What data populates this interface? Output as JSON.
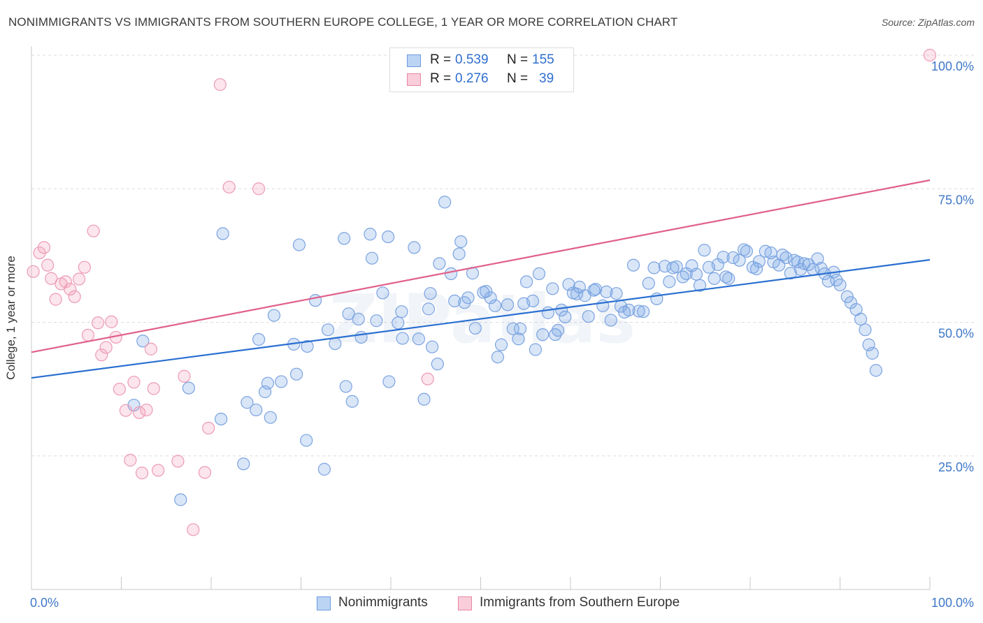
{
  "title": "NONIMMIGRANTS VS IMMIGRANTS FROM SOUTHERN EUROPE COLLEGE, 1 YEAR OR MORE CORRELATION CHART",
  "source": "Source: ZipAtlas.com",
  "watermark": "ZIPatlas",
  "legend": {
    "r_label": "R =",
    "n_label": "N =",
    "rows": [
      {
        "r": "0.539",
        "n": "155",
        "color": "#a9c8f2",
        "border": "#6d9be0"
      },
      {
        "r": "0.276",
        "n": "39",
        "color": "#f7bfcf",
        "border": "#e886a3"
      }
    ]
  },
  "bottom_legend": [
    {
      "label": "Nonimmigrants",
      "color": "#a9c8f2",
      "border": "#6d9be0"
    },
    {
      "label": "Immigrants from Southern Europe",
      "color": "#f7bfcf",
      "border": "#e886a3"
    }
  ],
  "colors": {
    "blue_fill": "rgba(120,165,230,0.28)",
    "blue_stroke": "#7ba3e0",
    "blue_line": "#2a6fd1",
    "pink_fill": "rgba(244,160,185,0.28)",
    "pink_stroke": "#ec9bb5",
    "pink_line": "#e0608a",
    "axis_text": "#3f78c9"
  },
  "chart_data": {
    "type": "scatter",
    "title": "NONIMMIGRANTS VS IMMIGRANTS FROM SOUTHERN EUROPE COLLEGE, 1 YEAR OR MORE CORRELATION CHART",
    "xlabel": "",
    "ylabel": "College, 1 year or more",
    "xlim": [
      0,
      100
    ],
    "ylim": [
      0,
      100
    ],
    "x_tick_labels": [
      "0.0%",
      "100.0%"
    ],
    "y_tick_labels": [
      "25.0%",
      "50.0%",
      "75.0%",
      "100.0%"
    ],
    "y_ticks": [
      25,
      50,
      75,
      100
    ],
    "grid": true,
    "legend_position": "top-center",
    "series": [
      {
        "name": "Nonimmigrants",
        "points": [
          [
            11.4,
            34.5
          ],
          [
            12.4,
            46.5
          ],
          [
            16.6,
            16.8
          ],
          [
            17.5,
            37.7
          ],
          [
            21.1,
            31.9
          ],
          [
            21.3,
            66.6
          ],
          [
            23.6,
            23.5
          ],
          [
            24.0,
            35.0
          ],
          [
            25.3,
            46.8
          ],
          [
            25.0,
            33.6
          ],
          [
            26.0,
            37.0
          ],
          [
            26.3,
            38.6
          ],
          [
            26.6,
            32.2
          ],
          [
            27.0,
            51.3
          ],
          [
            27.8,
            38.9
          ],
          [
            29.2,
            45.9
          ],
          [
            29.5,
            40.3
          ],
          [
            29.8,
            64.5
          ],
          [
            30.6,
            27.9
          ],
          [
            30.7,
            45.5
          ],
          [
            31.6,
            54.1
          ],
          [
            32.6,
            22.5
          ],
          [
            33.0,
            48.6
          ],
          [
            33.8,
            46.0
          ],
          [
            34.8,
            65.7
          ],
          [
            35.0,
            38.0
          ],
          [
            35.3,
            51.6
          ],
          [
            35.7,
            35.2
          ],
          [
            36.4,
            50.6
          ],
          [
            36.7,
            47.2
          ],
          [
            37.7,
            66.5
          ],
          [
            37.9,
            62.0
          ],
          [
            38.4,
            50.3
          ],
          [
            39.1,
            55.5
          ],
          [
            39.7,
            66.0
          ],
          [
            39.8,
            38.9
          ],
          [
            40.8,
            49.9
          ],
          [
            41.2,
            52.0
          ],
          [
            41.3,
            47.0
          ],
          [
            42.6,
            64.0
          ],
          [
            43.1,
            46.9
          ],
          [
            43.7,
            35.6
          ],
          [
            44.2,
            52.5
          ],
          [
            44.4,
            55.4
          ],
          [
            44.6,
            45.4
          ],
          [
            45.2,
            42.2
          ],
          [
            45.4,
            61.0
          ],
          [
            46.0,
            72.5
          ],
          [
            46.7,
            59.1
          ],
          [
            47.1,
            54.0
          ],
          [
            47.6,
            62.8
          ],
          [
            47.8,
            65.1
          ],
          [
            48.2,
            53.7
          ],
          [
            48.6,
            54.6
          ],
          [
            49.1,
            59.2
          ],
          [
            49.4,
            48.9
          ],
          [
            50.3,
            55.6
          ],
          [
            51.1,
            54.6
          ],
          [
            51.6,
            53.1
          ],
          [
            51.9,
            43.5
          ],
          [
            52.3,
            45.8
          ],
          [
            53.0,
            53.3
          ],
          [
            53.6,
            48.8
          ],
          [
            54.2,
            46.9
          ],
          [
            54.4,
            48.8
          ],
          [
            54.8,
            53.5
          ],
          [
            55.1,
            57.6
          ],
          [
            55.8,
            54.0
          ],
          [
            56.1,
            44.9
          ],
          [
            56.5,
            59.1
          ],
          [
            56.9,
            47.7
          ],
          [
            57.5,
            51.8
          ],
          [
            58.0,
            56.3
          ],
          [
            58.3,
            47.7
          ],
          [
            58.6,
            48.5
          ],
          [
            59.0,
            52.3
          ],
          [
            59.4,
            51.0
          ],
          [
            59.8,
            57.1
          ],
          [
            60.3,
            55.5
          ],
          [
            60.7,
            55.3
          ],
          [
            61.0,
            56.6
          ],
          [
            61.6,
            55.0
          ],
          [
            62.0,
            51.1
          ],
          [
            62.6,
            56.0
          ],
          [
            62.8,
            56.2
          ],
          [
            63.6,
            53.1
          ],
          [
            64.0,
            55.7
          ],
          [
            64.5,
            50.4
          ],
          [
            65.1,
            55.4
          ],
          [
            65.6,
            53.0
          ],
          [
            66.0,
            51.9
          ],
          [
            66.5,
            52.3
          ],
          [
            67.0,
            60.7
          ],
          [
            67.6,
            52.1
          ],
          [
            68.1,
            52.0
          ],
          [
            68.7,
            57.3
          ],
          [
            69.3,
            60.2
          ],
          [
            69.6,
            54.4
          ],
          [
            70.5,
            60.5
          ],
          [
            71.0,
            57.6
          ],
          [
            71.4,
            60.2
          ],
          [
            71.8,
            60.4
          ],
          [
            72.5,
            58.5
          ],
          [
            72.9,
            59.1
          ],
          [
            73.5,
            60.6
          ],
          [
            74.0,
            59.0
          ],
          [
            74.4,
            56.9
          ],
          [
            74.9,
            63.5
          ],
          [
            75.4,
            60.3
          ],
          [
            76.0,
            58.2
          ],
          [
            76.4,
            60.8
          ],
          [
            77.0,
            62.2
          ],
          [
            77.3,
            58.5
          ],
          [
            77.6,
            58.2
          ],
          [
            78.1,
            62.1
          ],
          [
            78.8,
            61.6
          ],
          [
            79.3,
            63.6
          ],
          [
            79.6,
            63.3
          ],
          [
            80.3,
            60.3
          ],
          [
            80.7,
            60.0
          ],
          [
            81.0,
            61.4
          ],
          [
            81.7,
            63.3
          ],
          [
            82.3,
            63.0
          ],
          [
            82.6,
            61.3
          ],
          [
            83.2,
            60.7
          ],
          [
            83.6,
            62.6
          ],
          [
            84.0,
            62.1
          ],
          [
            84.5,
            59.2
          ],
          [
            84.9,
            61.6
          ],
          [
            85.3,
            61.3
          ],
          [
            85.6,
            59.9
          ],
          [
            86.0,
            61.0
          ],
          [
            86.5,
            60.8
          ],
          [
            87.0,
            59.9
          ],
          [
            87.5,
            61.9
          ],
          [
            87.9,
            60.1
          ],
          [
            88.3,
            59.1
          ],
          [
            88.7,
            57.7
          ],
          [
            89.3,
            59.4
          ],
          [
            89.6,
            57.9
          ],
          [
            90.0,
            57.0
          ],
          [
            90.8,
            54.8
          ],
          [
            91.2,
            53.7
          ],
          [
            91.8,
            52.4
          ],
          [
            92.3,
            50.6
          ],
          [
            92.8,
            48.6
          ],
          [
            93.2,
            45.8
          ],
          [
            93.6,
            44.2
          ],
          [
            94.0,
            41.0
          ],
          [
            50.6,
            55.8
          ]
        ]
      },
      {
        "name": "Immigrants from Southern Europe",
        "points": [
          [
            0.2,
            59.5
          ],
          [
            0.9,
            63.0
          ],
          [
            1.4,
            64.0
          ],
          [
            1.8,
            60.7
          ],
          [
            2.2,
            58.2
          ],
          [
            2.7,
            54.3
          ],
          [
            3.3,
            57.2
          ],
          [
            3.8,
            57.6
          ],
          [
            4.3,
            56.2
          ],
          [
            4.8,
            54.8
          ],
          [
            5.3,
            58.1
          ],
          [
            5.9,
            60.3
          ],
          [
            6.3,
            47.6
          ],
          [
            6.9,
            67.1
          ],
          [
            7.4,
            49.9
          ],
          [
            7.8,
            43.9
          ],
          [
            8.3,
            45.3
          ],
          [
            8.9,
            50.1
          ],
          [
            9.4,
            47.2
          ],
          [
            9.8,
            37.5
          ],
          [
            10.5,
            33.5
          ],
          [
            11.0,
            24.2
          ],
          [
            11.4,
            38.8
          ],
          [
            12.0,
            33.1
          ],
          [
            12.3,
            21.8
          ],
          [
            12.8,
            33.6
          ],
          [
            13.3,
            45.0
          ],
          [
            13.6,
            37.6
          ],
          [
            14.1,
            22.3
          ],
          [
            16.3,
            24.0
          ],
          [
            17.0,
            39.9
          ],
          [
            18.0,
            11.2
          ],
          [
            19.3,
            21.9
          ],
          [
            19.7,
            30.2
          ],
          [
            21.0,
            94.5
          ],
          [
            22.0,
            75.3
          ],
          [
            25.3,
            75.0
          ],
          [
            44.1,
            39.4
          ],
          [
            100.0,
            100.0
          ]
        ]
      }
    ],
    "trendlines": [
      {
        "series": "Nonimmigrants",
        "x": [
          0,
          100
        ],
        "y": [
          39.6,
          61.7
        ]
      },
      {
        "series": "Immigrants from Southern Europe",
        "x": [
          0,
          100
        ],
        "y": [
          44.4,
          76.6
        ]
      }
    ]
  }
}
